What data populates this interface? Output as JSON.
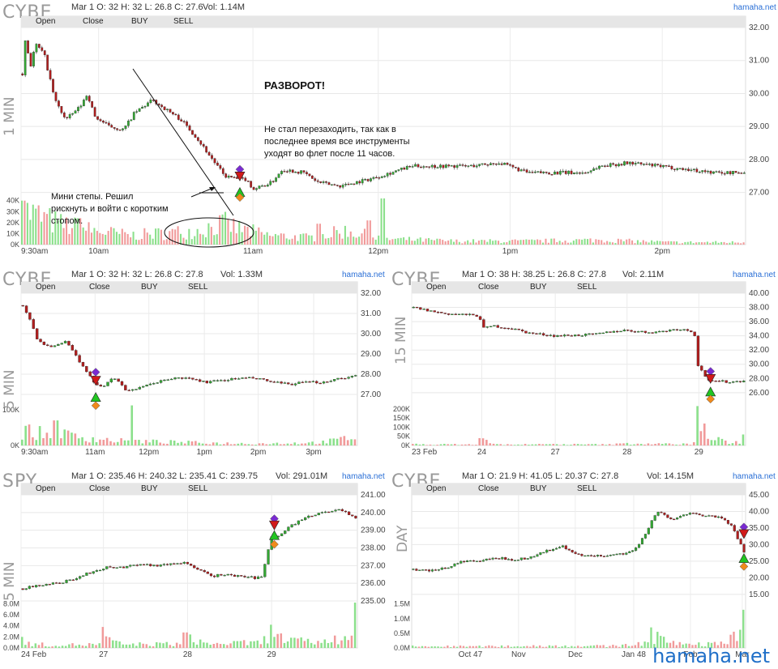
{
  "site_brand": "hamaha.net",
  "annotations": {
    "title": "РАЗВОРОТ!",
    "note_right": [
      "Не стал перезаходить, так как в",
      "последнее время все инструменты",
      "уходят во флет после 11 часов."
    ],
    "note_left": [
      "Мини степы. Решил",
      "рискнуть и войти с коротким",
      "стопом."
    ]
  },
  "legend": {
    "open": "Open",
    "close": "Close",
    "buy": "BUY",
    "sell": "SELL",
    "colors": {
      "open": "#f08a1c",
      "close": "#7a2bd1",
      "buy": "#21c521",
      "sell": "#d11a1a",
      "up": "#33a833",
      "down": "#b01e1e"
    }
  },
  "chart_data": [
    {
      "id": "p1",
      "type": "candlestick",
      "symbol": "CYBE",
      "timeframe": "1 MIN",
      "info": "Mar 1 O: 32 H: 32 L: 26.8 C: 27.6",
      "volume_text": "Vol: 1.14M",
      "ylim": [
        26.5,
        32.0
      ],
      "y_ticks": [
        "32.00",
        "31.00",
        "30.00",
        "29.00",
        "28.00",
        "27.00"
      ],
      "y_tick_values": [
        32,
        31,
        30,
        29,
        28,
        27
      ],
      "vol_ticks": [
        "40K",
        "30K",
        "20K",
        "10K",
        "0K"
      ],
      "vol_tick_values": [
        40,
        30,
        20,
        10,
        0
      ],
      "x_ticks": [
        "9:30am",
        "10am",
        "11am",
        "12pm",
        "1pm",
        "2pm"
      ],
      "x_tick_pos": [
        0,
        0.107,
        0.32,
        0.493,
        0.675,
        0.885
      ],
      "anchors": [
        [
          0,
          30.6
        ],
        [
          0.005,
          31.9
        ],
        [
          0.01,
          30.7
        ],
        [
          0.018,
          31.5
        ],
        [
          0.03,
          31.2
        ],
        [
          0.045,
          29.8
        ],
        [
          0.06,
          29.2
        ],
        [
          0.08,
          29.6
        ],
        [
          0.09,
          30.0
        ],
        [
          0.1,
          29.3
        ],
        [
          0.12,
          29.0
        ],
        [
          0.14,
          28.9
        ],
        [
          0.155,
          29.4
        ],
        [
          0.18,
          29.8
        ],
        [
          0.2,
          29.5
        ],
        [
          0.22,
          29.2
        ],
        [
          0.24,
          28.7
        ],
        [
          0.26,
          28.1
        ],
        [
          0.28,
          27.5
        ],
        [
          0.3,
          27.4
        ],
        [
          0.31,
          27.4
        ],
        [
          0.32,
          27.1
        ],
        [
          0.345,
          27.3
        ],
        [
          0.36,
          27.7
        ],
        [
          0.39,
          27.6
        ],
        [
          0.41,
          27.3
        ],
        [
          0.44,
          27.2
        ],
        [
          0.48,
          27.4
        ],
        [
          0.51,
          27.6
        ],
        [
          0.54,
          27.8
        ],
        [
          0.58,
          27.8
        ],
        [
          0.62,
          27.8
        ],
        [
          0.66,
          27.9
        ],
        [
          0.7,
          27.6
        ],
        [
          0.74,
          27.6
        ],
        [
          0.78,
          27.6
        ],
        [
          0.8,
          27.8
        ],
        [
          0.84,
          27.9
        ],
        [
          0.88,
          27.8
        ],
        [
          0.92,
          27.7
        ],
        [
          0.96,
          27.6
        ],
        [
          1.0,
          27.6
        ]
      ],
      "volume_anchors": [
        [
          0,
          30
        ],
        [
          0.05,
          18
        ],
        [
          0.1,
          12
        ],
        [
          0.15,
          8
        ],
        [
          0.2,
          10
        ],
        [
          0.24,
          12
        ],
        [
          0.28,
          18
        ],
        [
          0.3,
          14
        ],
        [
          0.34,
          8
        ],
        [
          0.4,
          6
        ],
        [
          0.45,
          12
        ],
        [
          0.5,
          5
        ],
        [
          0.6,
          3
        ],
        [
          0.7,
          3
        ],
        [
          0.8,
          4
        ],
        [
          0.9,
          2
        ],
        [
          1.0,
          2
        ]
      ],
      "volume_spikes": [
        [
          0.0,
          40
        ],
        [
          0.08,
          24
        ],
        [
          0.28,
          20
        ],
        [
          0.5,
          42
        ],
        [
          0.48,
          22
        ],
        [
          0.41,
          19
        ]
      ],
      "markers": [
        {
          "kind": "close",
          "x": 0.302,
          "y": 27.7
        },
        {
          "kind": "sell",
          "x": 0.302,
          "y": 27.5
        },
        {
          "kind": "buy",
          "x": 0.302,
          "y": 27.0
        },
        {
          "kind": "open",
          "x": 0.302,
          "y": 26.85
        }
      ]
    },
    {
      "id": "p2",
      "type": "candlestick",
      "symbol": "CYBE",
      "timeframe": "5 MIN",
      "info": "Mar 1 O: 32 H: 32 L: 26.8 C: 27.8",
      "volume_text": "Vol: 1.33M",
      "ylim": [
        26.6,
        32.0
      ],
      "y_ticks": [
        "32.00",
        "31.00",
        "30.00",
        "29.00",
        "28.00",
        "27.00"
      ],
      "y_tick_values": [
        32,
        31,
        30,
        29,
        28,
        27
      ],
      "vol_ticks": [
        "100K",
        "0K"
      ],
      "vol_tick_values": [
        100,
        0
      ],
      "vol_max": 120,
      "x_ticks": [
        "9:30am",
        "11am",
        "12pm",
        "1pm",
        "2pm",
        "3pm"
      ],
      "x_tick_pos": [
        0,
        0.22,
        0.38,
        0.545,
        0.705,
        0.87
      ],
      "anchors": [
        [
          0,
          31.4
        ],
        [
          0.02,
          30.8
        ],
        [
          0.04,
          29.8
        ],
        [
          0.07,
          29.4
        ],
        [
          0.1,
          29.4
        ],
        [
          0.13,
          29.6
        ],
        [
          0.16,
          28.9
        ],
        [
          0.19,
          28.1
        ],
        [
          0.22,
          27.5
        ],
        [
          0.24,
          27.4
        ],
        [
          0.26,
          27.7
        ],
        [
          0.28,
          27.8
        ],
        [
          0.31,
          27.2
        ],
        [
          0.35,
          27.3
        ],
        [
          0.4,
          27.6
        ],
        [
          0.45,
          27.8
        ],
        [
          0.5,
          27.8
        ],
        [
          0.55,
          27.6
        ],
        [
          0.6,
          27.7
        ],
        [
          0.65,
          27.8
        ],
        [
          0.7,
          27.8
        ],
        [
          0.75,
          27.6
        ],
        [
          0.8,
          27.5
        ],
        [
          0.85,
          27.6
        ],
        [
          0.9,
          27.6
        ],
        [
          0.95,
          27.8
        ],
        [
          1.0,
          27.9
        ]
      ],
      "volume_anchors": [
        [
          0,
          40
        ],
        [
          0.05,
          32
        ],
        [
          0.1,
          30
        ],
        [
          0.15,
          26
        ],
        [
          0.2,
          20
        ],
        [
          0.25,
          15
        ],
        [
          0.3,
          12
        ],
        [
          0.4,
          10
        ],
        [
          0.5,
          8
        ],
        [
          0.6,
          6
        ],
        [
          0.7,
          5
        ],
        [
          0.8,
          6
        ],
        [
          0.9,
          8
        ],
        [
          1.0,
          22
        ]
      ],
      "volume_spikes": [
        [
          0.33,
          112
        ],
        [
          0.1,
          70
        ]
      ],
      "markers": [
        {
          "kind": "close",
          "x": 0.222,
          "y": 28.1
        },
        {
          "kind": "sell",
          "x": 0.222,
          "y": 27.7
        },
        {
          "kind": "buy",
          "x": 0.222,
          "y": 26.85
        },
        {
          "kind": "open",
          "x": 0.222,
          "y": 26.45
        }
      ]
    },
    {
      "id": "p3",
      "type": "candlestick",
      "symbol": "CYBE",
      "timeframe": "15 MIN",
      "info": "Mar 1 O: 38 H: 38.25 L: 26.8 C: 27.8",
      "volume_text": "Vol: 2.11M",
      "ylim": [
        24.5,
        40.0
      ],
      "y_ticks": [
        "40.00",
        "38.00",
        "36.00",
        "34.00",
        "32.00",
        "30.00",
        "28.00",
        "26.00"
      ],
      "y_tick_values": [
        40,
        38,
        36,
        34,
        32,
        30,
        28,
        26
      ],
      "vol_ticks": [
        "200K",
        "150K",
        "100K",
        "50K",
        "0K"
      ],
      "vol_tick_values": [
        200,
        150,
        100,
        50,
        0
      ],
      "vol_max": 230,
      "x_ticks": [
        "23 Feb",
        "24",
        "27",
        "28",
        "29"
      ],
      "x_tick_pos": [
        0,
        0.21,
        0.43,
        0.645,
        0.86
      ],
      "anchors": [
        [
          0,
          38.0
        ],
        [
          0.05,
          37.5
        ],
        [
          0.1,
          37.1
        ],
        [
          0.15,
          37.0
        ],
        [
          0.2,
          36.8
        ],
        [
          0.21,
          35.0
        ],
        [
          0.24,
          35.4
        ],
        [
          0.3,
          35.0
        ],
        [
          0.35,
          34.4
        ],
        [
          0.43,
          34.0
        ],
        [
          0.5,
          34.1
        ],
        [
          0.55,
          34.2
        ],
        [
          0.6,
          34.6
        ],
        [
          0.645,
          34.8
        ],
        [
          0.7,
          34.5
        ],
        [
          0.75,
          34.6
        ],
        [
          0.8,
          35.0
        ],
        [
          0.85,
          34.6
        ],
        [
          0.86,
          30.0
        ],
        [
          0.88,
          28.5
        ],
        [
          0.9,
          27.5
        ],
        [
          0.93,
          27.6
        ],
        [
          0.96,
          27.5
        ],
        [
          1.0,
          27.7
        ]
      ],
      "volume_anchors": [
        [
          0,
          6
        ],
        [
          0.2,
          5
        ],
        [
          0.21,
          30
        ],
        [
          0.25,
          5
        ],
        [
          0.43,
          6
        ],
        [
          0.6,
          5
        ],
        [
          0.645,
          10
        ],
        [
          0.8,
          7
        ],
        [
          0.85,
          8
        ],
        [
          0.86,
          60
        ],
        [
          0.9,
          40
        ],
        [
          0.95,
          15
        ],
        [
          1.0,
          20
        ]
      ],
      "volume_spikes": [
        [
          0.86,
          215
        ],
        [
          0.2,
          40
        ],
        [
          0.88,
          120
        ],
        [
          1.0,
          60
        ]
      ],
      "markers": [
        {
          "kind": "close",
          "x": 0.895,
          "y": 29.0
        },
        {
          "kind": "sell",
          "x": 0.895,
          "y": 28.0
        },
        {
          "kind": "buy",
          "x": 0.895,
          "y": 26.1
        },
        {
          "kind": "open",
          "x": 0.895,
          "y": 25.1
        }
      ]
    },
    {
      "id": "p4",
      "type": "candlestick",
      "symbol": "SPY",
      "timeframe": "5 MIN",
      "info": "Mar 1 O: 235.46 H: 240.32 L: 235.41 C: 239.75",
      "volume_text": "Vol: 291.01M",
      "ylim": [
        235.0,
        241.0
      ],
      "y_ticks": [
        "241.00",
        "240.00",
        "239.00",
        "238.00",
        "237.00",
        "236.00",
        "235.00"
      ],
      "y_tick_values": [
        241,
        240,
        239,
        238,
        237,
        236,
        235
      ],
      "vol_ticks": [
        "8.0M",
        "6.0M",
        "4.0M",
        "2.0M",
        "0.0M"
      ],
      "vol_tick_values": [
        8,
        6,
        4,
        2,
        0
      ],
      "vol_max": 8.5,
      "x_ticks": [
        "24 Feb",
        "27",
        "28",
        "29"
      ],
      "x_tick_pos": [
        0,
        0.245,
        0.495,
        0.745
      ],
      "anchors": [
        [
          0,
          235.7
        ],
        [
          0.05,
          235.9
        ],
        [
          0.1,
          236.0
        ],
        [
          0.15,
          236.2
        ],
        [
          0.2,
          236.6
        ],
        [
          0.25,
          236.9
        ],
        [
          0.3,
          236.9
        ],
        [
          0.35,
          237.1
        ],
        [
          0.4,
          237.0
        ],
        [
          0.45,
          237.1
        ],
        [
          0.49,
          237.2
        ],
        [
          0.52,
          236.8
        ],
        [
          0.57,
          236.4
        ],
        [
          0.6,
          236.5
        ],
        [
          0.65,
          236.4
        ],
        [
          0.7,
          236.3
        ],
        [
          0.72,
          236.4
        ],
        [
          0.745,
          238.6
        ],
        [
          0.78,
          238.8
        ],
        [
          0.8,
          239.2
        ],
        [
          0.85,
          239.7
        ],
        [
          0.9,
          240.0
        ],
        [
          0.95,
          240.2
        ],
        [
          1.0,
          239.7
        ]
      ],
      "volume_anchors": [
        [
          0,
          0.8
        ],
        [
          0.05,
          0.6
        ],
        [
          0.1,
          0.5
        ],
        [
          0.24,
          0.6
        ],
        [
          0.25,
          1.5
        ],
        [
          0.3,
          0.6
        ],
        [
          0.49,
          0.7
        ],
        [
          0.5,
          2.0
        ],
        [
          0.55,
          0.7
        ],
        [
          0.72,
          0.9
        ],
        [
          0.745,
          2.5
        ],
        [
          0.8,
          1.2
        ],
        [
          0.9,
          1.0
        ],
        [
          1.0,
          2.0
        ]
      ],
      "volume_spikes": [
        [
          1.0,
          8.2
        ],
        [
          0.745,
          4.2
        ],
        [
          0.245,
          3.8
        ],
        [
          0.49,
          2.8
        ],
        [
          0.0,
          2.0
        ]
      ],
      "markers": [
        {
          "kind": "close",
          "x": 0.753,
          "y": 239.65
        },
        {
          "kind": "sell",
          "x": 0.753,
          "y": 239.3
        },
        {
          "kind": "buy",
          "x": 0.753,
          "y": 238.7
        },
        {
          "kind": "open",
          "x": 0.753,
          "y": 238.2
        }
      ]
    },
    {
      "id": "p5",
      "type": "candlestick",
      "symbol": "CYBE",
      "timeframe": "DAY",
      "info": "Mar 1 O: 21.9 H: 41.05 L: 20.37 C: 27.8",
      "volume_text": "Vol: 14.15M",
      "ylim": [
        13.0,
        45.0
      ],
      "y_ticks": [
        "45.00",
        "40.00",
        "35.00",
        "30.00",
        "25.00",
        "20.00",
        "15.00"
      ],
      "y_tick_values": [
        45,
        40,
        35,
        30,
        25,
        20,
        15
      ],
      "vol_ticks": [
        "1.5M",
        "1.0M",
        "0.5M",
        "0.0M"
      ],
      "vol_tick_values": [
        1.5,
        1.0,
        0.5,
        0.0
      ],
      "vol_max": 1.6,
      "x_ticks": [
        "Oct 47",
        "Nov",
        "Dec",
        "Jan 48",
        "Feb",
        "Mar"
      ],
      "x_tick_pos": [
        0.14,
        0.32,
        0.49,
        0.665,
        0.835,
        0.99
      ],
      "anchors": [
        [
          0,
          22.5
        ],
        [
          0.05,
          22.0
        ],
        [
          0.1,
          23.0
        ],
        [
          0.15,
          25.0
        ],
        [
          0.2,
          25.0
        ],
        [
          0.25,
          26.0
        ],
        [
          0.3,
          25.5
        ],
        [
          0.35,
          26.0
        ],
        [
          0.4,
          28.0
        ],
        [
          0.45,
          29.5
        ],
        [
          0.48,
          27.5
        ],
        [
          0.52,
          26.5
        ],
        [
          0.55,
          26.5
        ],
        [
          0.6,
          27.0
        ],
        [
          0.65,
          27.5
        ],
        [
          0.68,
          29.5
        ],
        [
          0.7,
          33.0
        ],
        [
          0.72,
          37.0
        ],
        [
          0.74,
          40.0
        ],
        [
          0.77,
          38.0
        ],
        [
          0.79,
          37.5
        ],
        [
          0.82,
          39.0
        ],
        [
          0.84,
          40.0
        ],
        [
          0.87,
          39.0
        ],
        [
          0.9,
          38.5
        ],
        [
          0.93,
          38.0
        ],
        [
          0.96,
          36.0
        ],
        [
          1.0,
          28.0
        ]
      ],
      "volume_anchors": [
        [
          0,
          0.05
        ],
        [
          0.2,
          0.05
        ],
        [
          0.4,
          0.07
        ],
        [
          0.6,
          0.06
        ],
        [
          0.7,
          0.15
        ],
        [
          0.75,
          0.25
        ],
        [
          0.8,
          0.15
        ],
        [
          0.9,
          0.12
        ],
        [
          0.96,
          0.25
        ],
        [
          1.0,
          0.6
        ]
      ],
      "volume_spikes": [
        [
          1.0,
          1.3
        ],
        [
          0.72,
          0.7
        ],
        [
          0.74,
          0.55
        ],
        [
          0.96,
          0.45
        ]
      ],
      "markers": [
        {
          "kind": "close",
          "x": 0.995,
          "y": 35.3
        },
        {
          "kind": "sell",
          "x": 0.995,
          "y": 33.3
        },
        {
          "kind": "buy",
          "x": 0.995,
          "y": 25.8
        },
        {
          "kind": "open",
          "x": 0.995,
          "y": 23.4
        }
      ]
    }
  ]
}
